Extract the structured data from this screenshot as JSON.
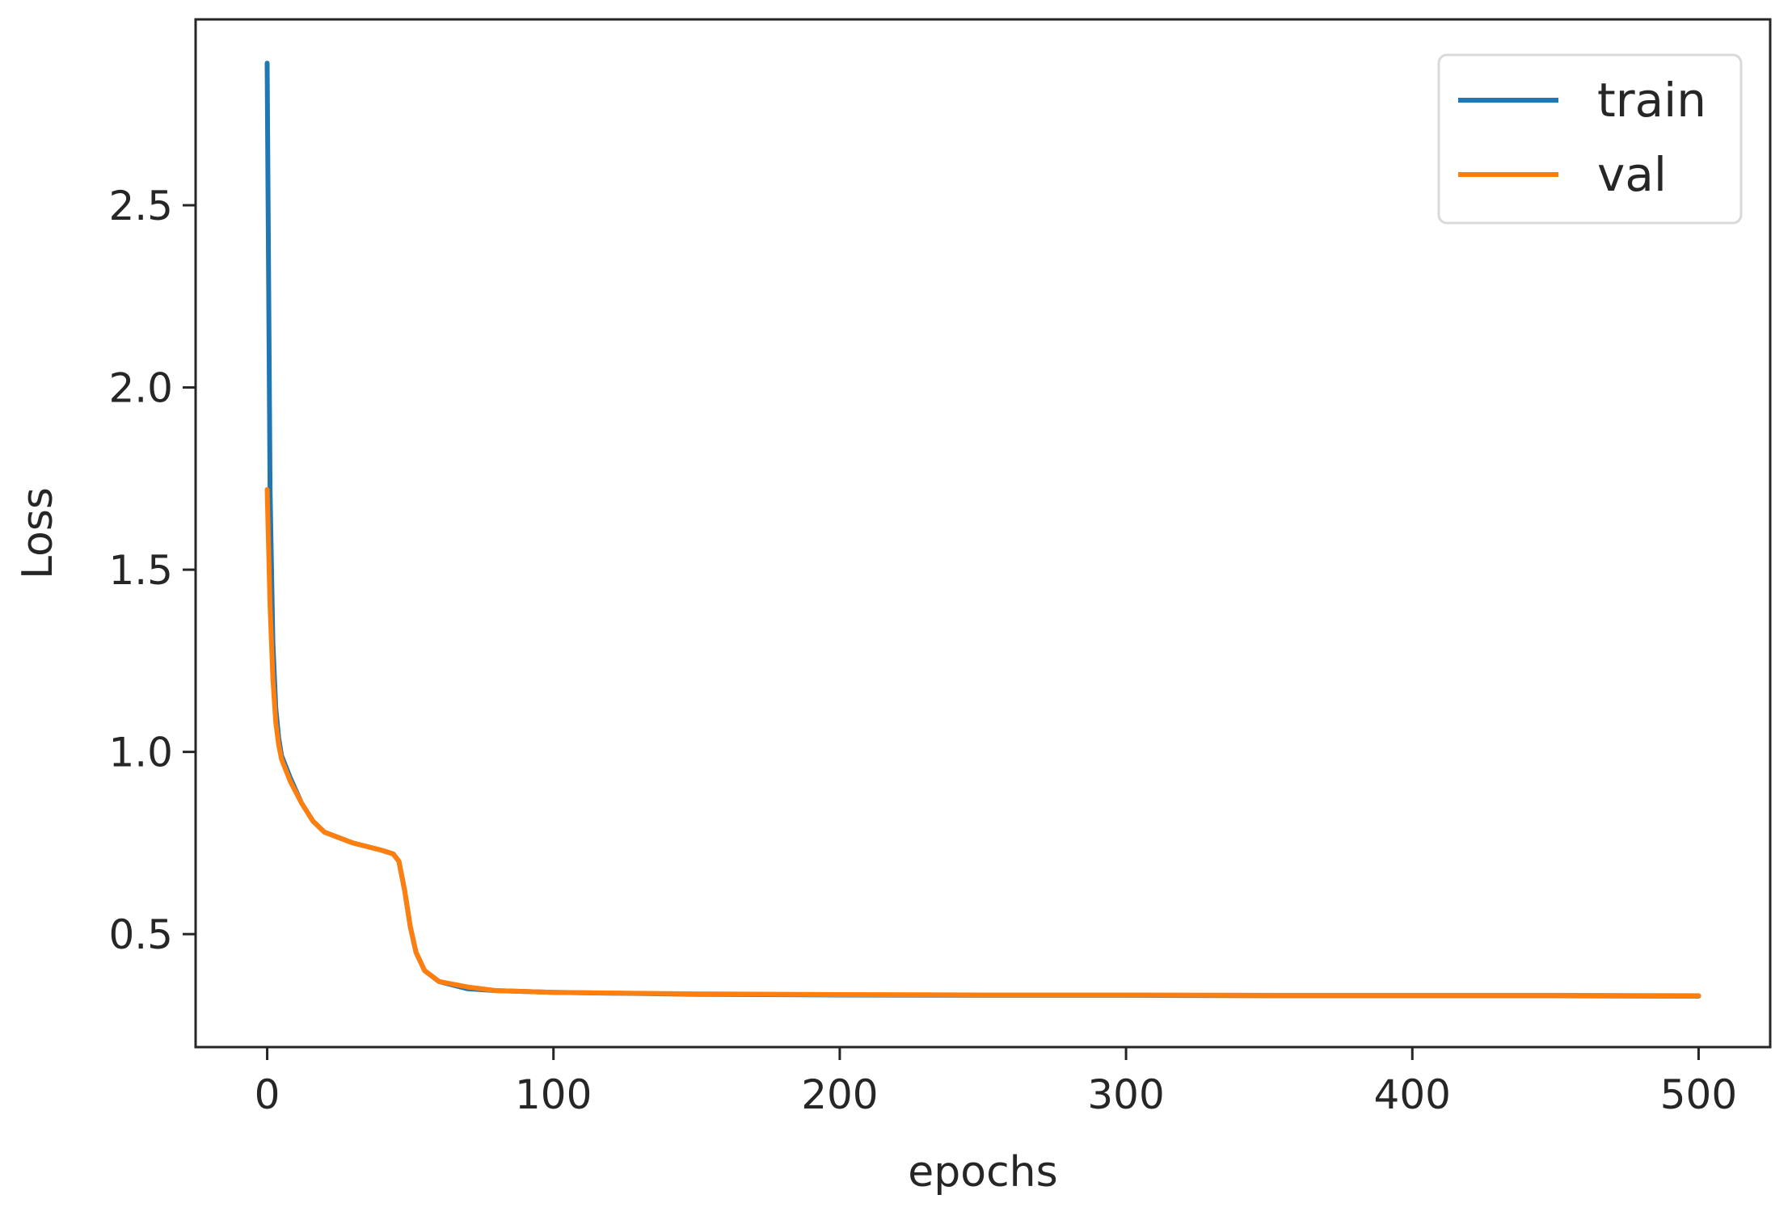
{
  "chart_data": {
    "type": "line",
    "title": "",
    "xlabel": "epochs",
    "ylabel": "Loss",
    "xlim": [
      -25,
      525
    ],
    "ylim": [
      0.19,
      3.01
    ],
    "x_ticks": [
      0,
      100,
      200,
      300,
      400,
      500
    ],
    "x_tick_labels": [
      "0",
      "100",
      "200",
      "300",
      "400",
      "500"
    ],
    "y_ticks": [
      0.5,
      1.0,
      1.5,
      2.0,
      2.5
    ],
    "y_tick_labels": [
      "0.5",
      "1.0",
      "1.5",
      "2.0",
      "2.5"
    ],
    "grid": false,
    "legend": {
      "placement": "top-right"
    },
    "series": [
      {
        "name": "train",
        "color": "#1f77b4",
        "x": [
          0,
          1,
          2,
          3,
          4,
          5,
          8,
          12,
          16,
          20,
          30,
          40,
          44,
          46,
          48,
          50,
          52,
          55,
          60,
          70,
          80,
          100,
          150,
          200,
          250,
          300,
          350,
          400,
          450,
          500
        ],
        "y": [
          2.89,
          1.72,
          1.3,
          1.12,
          1.04,
          0.99,
          0.93,
          0.86,
          0.81,
          0.78,
          0.75,
          0.73,
          0.72,
          0.7,
          0.62,
          0.52,
          0.45,
          0.4,
          0.37,
          0.35,
          0.345,
          0.34,
          0.335,
          0.333,
          0.332,
          0.332,
          0.331,
          0.331,
          0.331,
          0.33
        ]
      },
      {
        "name": "val",
        "color": "#ff7f0e",
        "x": [
          0,
          1,
          2,
          3,
          4,
          5,
          8,
          12,
          16,
          20,
          30,
          40,
          44,
          46,
          48,
          50,
          52,
          55,
          60,
          70,
          80,
          100,
          150,
          200,
          250,
          300,
          350,
          400,
          450,
          500
        ],
        "y": [
          1.72,
          1.4,
          1.2,
          1.08,
          1.02,
          0.98,
          0.92,
          0.86,
          0.81,
          0.78,
          0.75,
          0.73,
          0.72,
          0.7,
          0.62,
          0.52,
          0.45,
          0.4,
          0.37,
          0.355,
          0.345,
          0.34,
          0.336,
          0.334,
          0.333,
          0.333,
          0.332,
          0.332,
          0.332,
          0.331
        ]
      }
    ]
  }
}
